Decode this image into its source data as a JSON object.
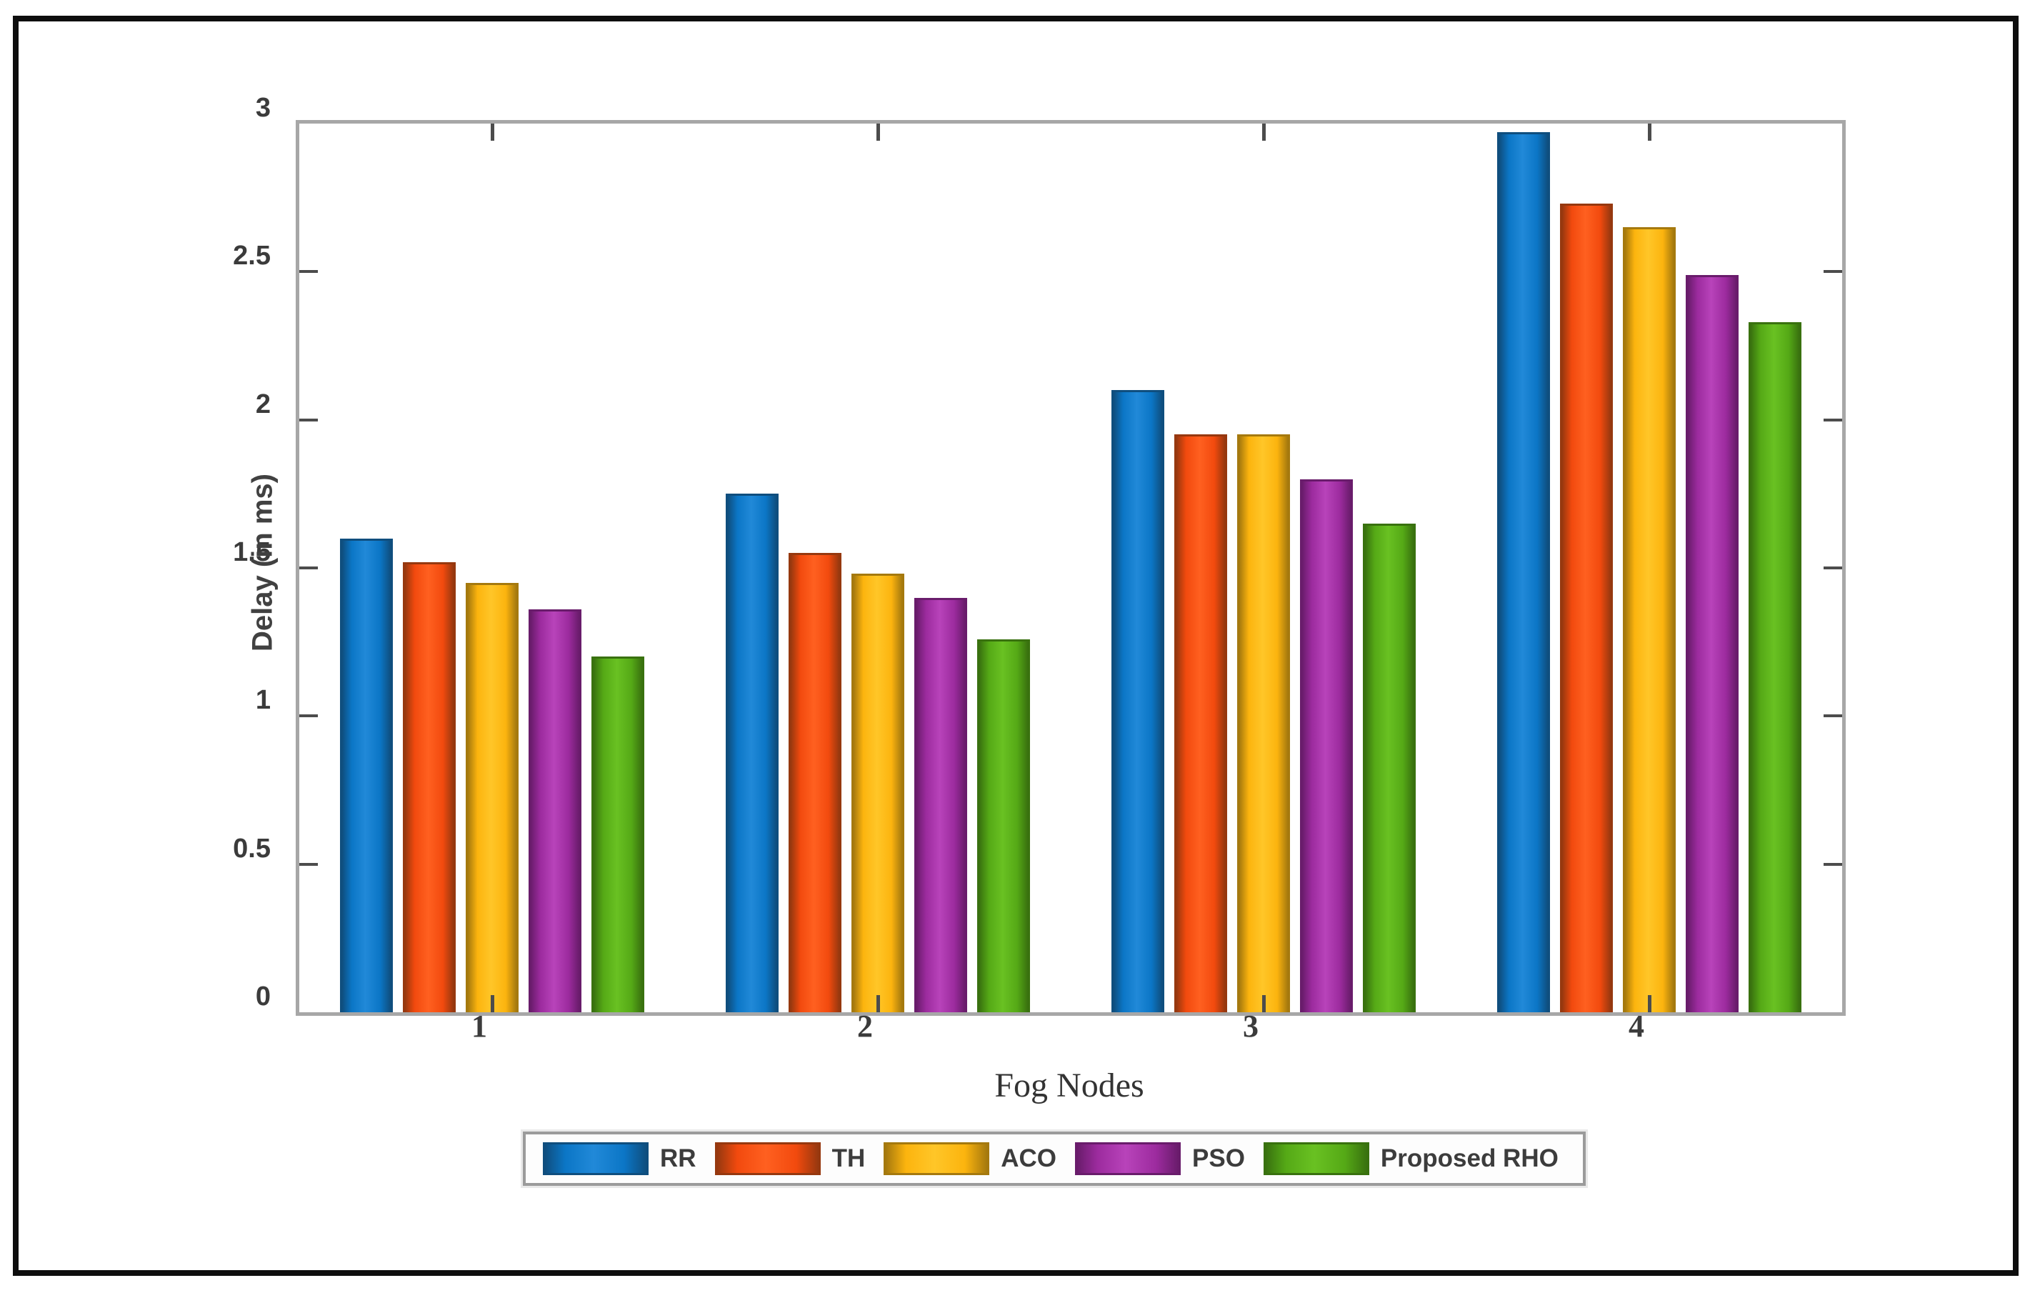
{
  "chart_data": {
    "type": "bar",
    "title": "",
    "xlabel": "Fog Nodes",
    "ylabel": "Delay (in ms)",
    "categories": [
      "1",
      "2",
      "3",
      "4"
    ],
    "series": [
      {
        "name": "RR",
        "color": "#0b76c6",
        "edge": "#0f4e7e",
        "light": "#2189d8",
        "values": [
          1.6,
          1.75,
          2.1,
          2.97
        ]
      },
      {
        "name": "TH",
        "color": "#f24a0e",
        "edge": "#96380f",
        "light": "#ff6020",
        "values": [
          1.52,
          1.55,
          1.95,
          2.73
        ]
      },
      {
        "name": "ACO",
        "color": "#fcb40e",
        "edge": "#a5790e",
        "light": "#ffc628",
        "values": [
          1.45,
          1.48,
          1.95,
          2.65
        ]
      },
      {
        "name": "PSO",
        "color": "#9c2b9e",
        "edge": "#691c6b",
        "light": "#b843ba",
        "values": [
          1.36,
          1.4,
          1.8,
          2.49
        ]
      },
      {
        "name": "Proposed RHO",
        "color": "#55a916",
        "edge": "#39710f",
        "light": "#69c122",
        "values": [
          1.2,
          1.26,
          1.65,
          2.33
        ]
      }
    ],
    "ylim": [
      0,
      3
    ],
    "y_ticks": [
      0,
      0.5,
      1,
      1.5,
      2,
      2.5,
      3
    ],
    "y_tick_labels": [
      "0",
      "0.5",
      "1",
      "1.5",
      "2",
      "2.5",
      "3"
    ],
    "grid": false,
    "legend_position": "bottom-outside",
    "axis_color": "#a7a7a7",
    "tick_mark_color": "#4c4c4c",
    "tick_text_color": "#3b3b3b",
    "frame_color": "#0e0e0e"
  }
}
